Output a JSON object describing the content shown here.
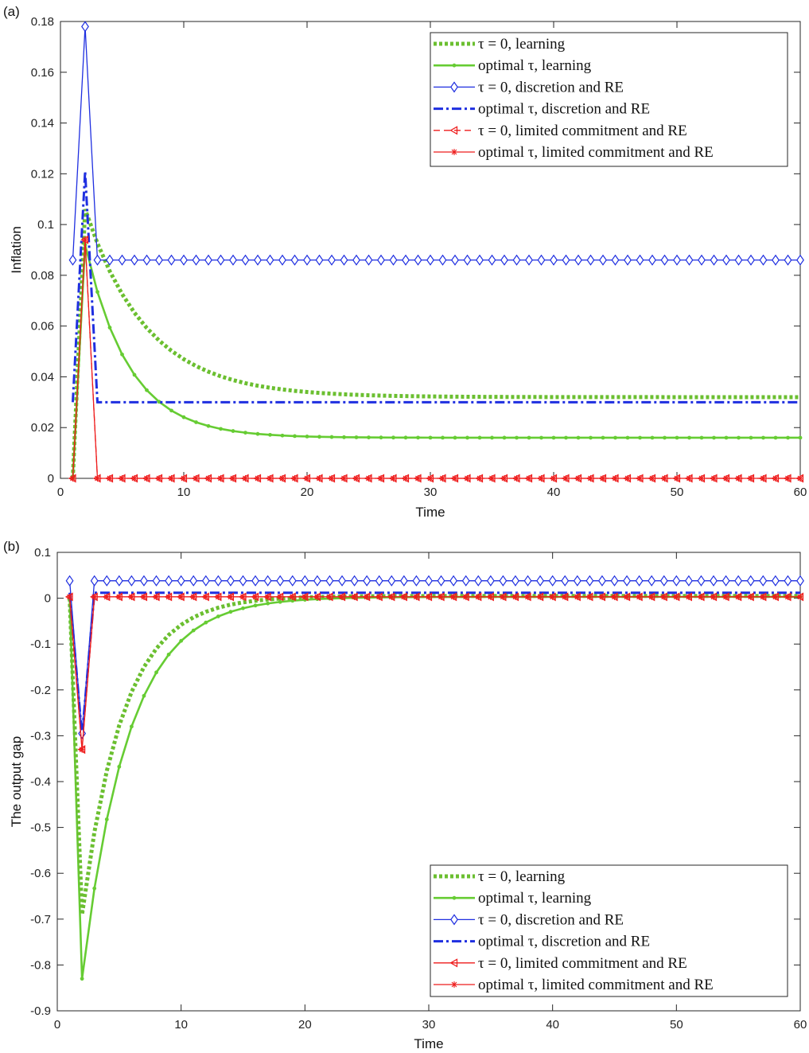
{
  "chart_data": [
    {
      "panel_label": "(a)",
      "type": "line",
      "xlabel": "Time",
      "ylabel": "Inflation",
      "xlim": [
        0,
        60
      ],
      "ylim": [
        0,
        0.18
      ],
      "xticks": [
        "0",
        "10",
        "20",
        "30",
        "40",
        "50",
        "60"
      ],
      "yticks": [
        "0",
        "0.02",
        "0.04",
        "0.06",
        "0.08",
        "0.1",
        "0.12",
        "0.14",
        "0.16",
        "0.18"
      ],
      "legend_position": "top-right",
      "grid": false,
      "x": [
        1,
        60
      ],
      "series": [
        {
          "name": "τ = 0, learning",
          "color": "#6bbf30",
          "style": "dotted-thick",
          "marker": "none",
          "shape": {
            "kind": "decay",
            "start": 0,
            "peak_t": 2,
            "peak": 0.106,
            "ss": 0.032,
            "rate": 0.2
          }
        },
        {
          "name": "optimal τ, learning",
          "color": "#66cc33",
          "style": "solid",
          "marker": "dot",
          "shape": {
            "kind": "decay",
            "start": 0,
            "peak_t": 2,
            "peak": 0.092,
            "ss": 0.016,
            "rate": 0.28
          }
        },
        {
          "name": "τ = 0, discretion and RE",
          "color": "#1f2fe0",
          "style": "solid-thin",
          "marker": "diamond",
          "shape": {
            "kind": "step",
            "start": 0.086,
            "peak_t": 2,
            "peak": 0.178,
            "ss": 0.086
          }
        },
        {
          "name": "optimal τ, discretion and RE",
          "color": "#1f2fe0",
          "style": "dashdot",
          "marker": "none",
          "shape": {
            "kind": "step",
            "start": 0.03,
            "peak_t": 2,
            "peak": 0.121,
            "ss": 0.03
          }
        },
        {
          "name": "τ = 0, limited commitment and RE",
          "color": "#ee1c1c",
          "style": "dashed",
          "marker": "triangle",
          "shape": {
            "kind": "step",
            "start": 0,
            "peak_t": 2,
            "peak": 0.094,
            "ss": 0
          }
        },
        {
          "name": "optimal τ, limited commitment and RE",
          "color": "#ee1c1c",
          "style": "solid-thin",
          "marker": "star",
          "shape": {
            "kind": "step",
            "start": 0,
            "peak_t": 2,
            "peak": 0.094,
            "ss": 0
          }
        }
      ]
    },
    {
      "panel_label": "(b)",
      "type": "line",
      "xlabel": "Time",
      "ylabel": "The output gap",
      "xlim": [
        0,
        60
      ],
      "ylim": [
        -0.9,
        0.1
      ],
      "xticks": [
        "0",
        "10",
        "20",
        "30",
        "40",
        "50",
        "60"
      ],
      "yticks": [
        "-0.9",
        "-0.8",
        "-0.7",
        "-0.6",
        "-0.5",
        "-0.4",
        "-0.3",
        "-0.2",
        "-0.1",
        "0",
        "0.1"
      ],
      "legend_position": "bottom-right",
      "grid": false,
      "x": [
        1,
        60
      ],
      "series": [
        {
          "name": "τ = 0, learning",
          "color": "#6bbf30",
          "style": "dotted-thick",
          "marker": "none",
          "shape": {
            "kind": "decay",
            "start": 0,
            "peak_t": 2,
            "peak": -0.69,
            "ss": 0.005,
            "rate": 0.3
          }
        },
        {
          "name": "optimal τ, learning",
          "color": "#66cc33",
          "style": "solid",
          "marker": "dot",
          "shape": {
            "kind": "decay",
            "start": 0,
            "peak_t": 2,
            "peak": -0.83,
            "ss": 0.003,
            "rate": 0.27
          }
        },
        {
          "name": "τ = 0, discretion and RE",
          "color": "#1f2fe0",
          "style": "solid-thin",
          "marker": "diamond",
          "shape": {
            "kind": "step",
            "start": 0.038,
            "peak_t": 2,
            "peak": -0.295,
            "ss": 0.038
          }
        },
        {
          "name": "optimal τ, discretion and RE",
          "color": "#1f2fe0",
          "style": "dashdot",
          "marker": "none",
          "shape": {
            "kind": "step",
            "start": 0.012,
            "peak_t": 2,
            "peak": -0.3,
            "ss": 0.012
          }
        },
        {
          "name": "τ = 0, limited commitment and RE",
          "color": "#ee1c1c",
          "style": "solid-thin",
          "marker": "triangle",
          "shape": {
            "kind": "step",
            "start": 0.003,
            "peak_t": 2,
            "peak": -0.33,
            "ss": 0.003
          }
        },
        {
          "name": "optimal τ, limited commitment and RE",
          "color": "#ee1c1c",
          "style": "solid-thin",
          "marker": "star",
          "shape": {
            "kind": "step",
            "start": 0.003,
            "peak_t": 2,
            "peak": -0.33,
            "ss": 0.003
          }
        }
      ]
    }
  ]
}
